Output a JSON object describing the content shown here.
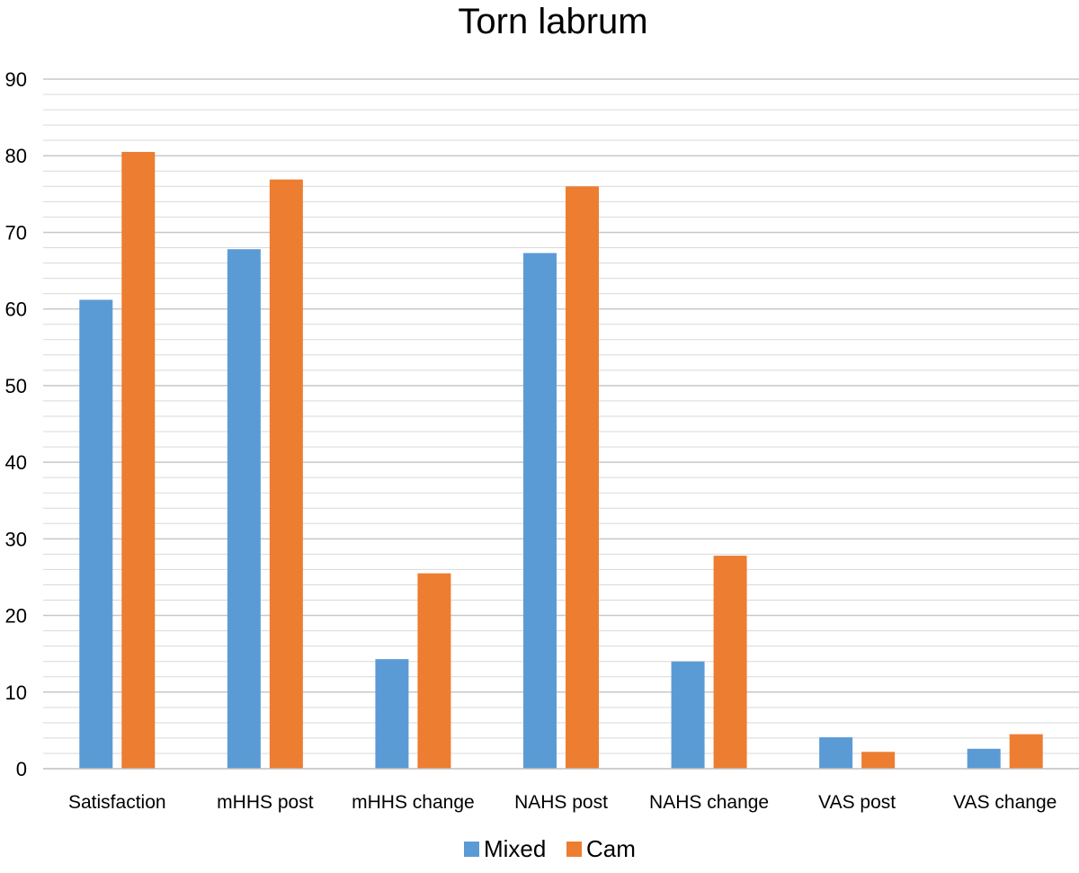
{
  "chart_data": {
    "type": "bar",
    "title": "Torn labrum",
    "xlabel": "",
    "ylabel": "",
    "ylim": [
      0,
      90
    ],
    "yticks": [
      0,
      10,
      20,
      30,
      40,
      50,
      60,
      70,
      80,
      90
    ],
    "minor_grid_step": 2,
    "grid": true,
    "legend_position": "bottom",
    "categories": [
      "Satisfaction",
      "mHHS post",
      "mHHS change",
      "NAHS post",
      "NAHS change",
      "VAS post",
      "VAS change"
    ],
    "series": [
      {
        "name": "Mixed",
        "color": "#5b9bd5",
        "values": [
          61.2,
          67.8,
          14.3,
          67.3,
          14.0,
          4.1,
          2.6
        ]
      },
      {
        "name": "Cam",
        "color": "#ed7d31",
        "values": [
          80.5,
          76.9,
          25.5,
          76.0,
          27.8,
          2.2,
          4.5
        ]
      }
    ]
  }
}
